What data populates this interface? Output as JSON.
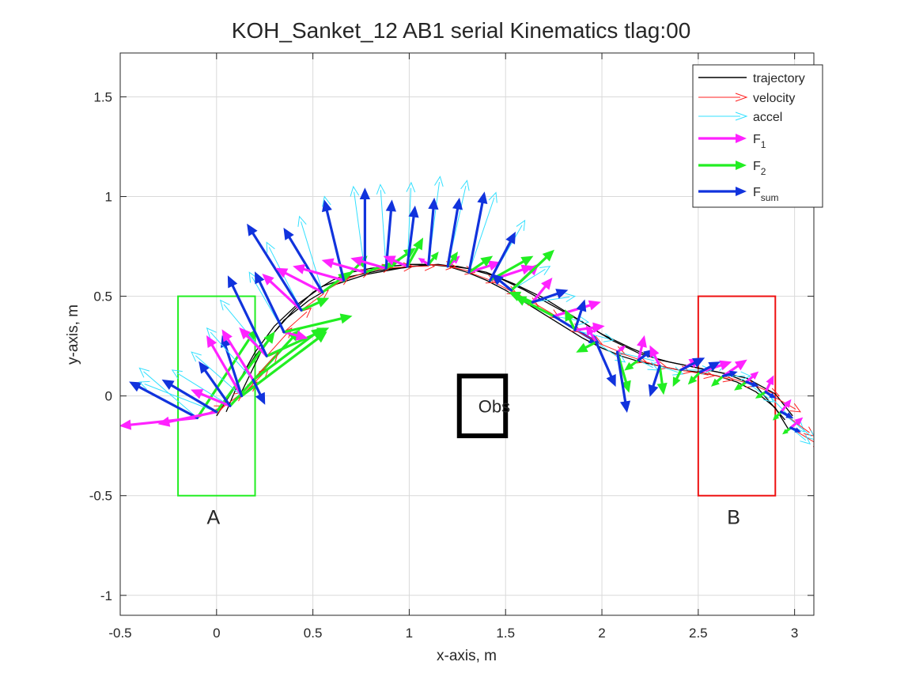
{
  "chart_data": {
    "type": "line",
    "title": "KOH_Sanket_12    AB1    serial    Kinematics tlag:00",
    "xlabel": "x-axis, m",
    "ylabel": "y-axis, m",
    "xlim": [
      -0.5,
      3.1
    ],
    "ylim": [
      -1.1,
      1.72
    ],
    "xticks": [
      -0.5,
      0,
      0.5,
      1,
      1.5,
      2,
      2.5,
      3
    ],
    "yticks": [
      -1,
      -0.5,
      0,
      0.5,
      1,
      1.5
    ],
    "xtick_labels": [
      "-0.5",
      "0",
      "0.5",
      "1",
      "1.5",
      "2",
      "2.5",
      "3"
    ],
    "ytick_labels": [
      "-1",
      "-0.5",
      "0",
      "0.5",
      "1",
      "1.5"
    ],
    "grid": true,
    "legend_position": "top-right",
    "legend": [
      {
        "label": "trajectory",
        "sub": "",
        "color": "#000000",
        "style": "line"
      },
      {
        "label": "velocity",
        "sub": "",
        "color": "#ff2020",
        "style": "thin-arrow"
      },
      {
        "label": "accel",
        "sub": "",
        "color": "#33e0ff",
        "style": "thin-arrow"
      },
      {
        "label": "F",
        "sub": "1",
        "color": "#ff22ff",
        "style": "thick-arrow"
      },
      {
        "label": "F",
        "sub": "2",
        "color": "#22ee22",
        "style": "thick-arrow"
      },
      {
        "label": "F",
        "sub": "sum",
        "color": "#1133dd",
        "style": "thick-arrow"
      }
    ],
    "regions": [
      {
        "label": "A",
        "x": [
          -0.2,
          0.2
        ],
        "y": [
          -0.5,
          0.5
        ],
        "color": "#22ee22"
      },
      {
        "label": "B",
        "x": [
          2.5,
          2.9
        ],
        "y": [
          -0.5,
          0.5
        ],
        "color": "#ee1111"
      }
    ],
    "obstacle": {
      "label": "Obs",
      "x": [
        1.26,
        1.5
      ],
      "y": [
        -0.2,
        0.1
      ],
      "color": "#000000"
    },
    "trajectories": [
      {
        "x": [
          0.0,
          0.1,
          0.2,
          0.3,
          0.4,
          0.5,
          0.6,
          0.7,
          0.8,
          0.9,
          1.0,
          1.1,
          1.2,
          1.3,
          1.4,
          1.5,
          1.6,
          1.7,
          1.8,
          1.9,
          2.0,
          2.1,
          2.2,
          2.3,
          2.4,
          2.5,
          2.6,
          2.7,
          2.8,
          2.9,
          2.97
        ],
        "y": [
          -0.1,
          0.05,
          0.2,
          0.32,
          0.43,
          0.52,
          0.58,
          0.62,
          0.64,
          0.65,
          0.66,
          0.66,
          0.65,
          0.62,
          0.58,
          0.53,
          0.47,
          0.41,
          0.35,
          0.29,
          0.24,
          0.2,
          0.17,
          0.15,
          0.13,
          0.12,
          0.1,
          0.07,
          0.02,
          -0.06,
          -0.17
        ]
      },
      {
        "x": [
          0.05,
          0.12,
          0.2,
          0.3,
          0.42,
          0.55,
          0.7,
          0.85,
          1.0,
          1.15,
          1.3,
          1.45,
          1.6,
          1.75,
          1.9,
          2.05,
          2.2,
          2.35,
          2.5,
          2.65,
          2.8,
          2.95
        ],
        "y": [
          -0.08,
          0.08,
          0.22,
          0.35,
          0.46,
          0.55,
          0.6,
          0.63,
          0.65,
          0.66,
          0.64,
          0.6,
          0.53,
          0.45,
          0.37,
          0.28,
          0.21,
          0.17,
          0.14,
          0.11,
          0.05,
          -0.12
        ]
      },
      {
        "x": [
          0.12,
          0.18,
          0.25,
          0.35,
          0.48,
          0.62,
          0.78,
          0.95,
          1.1,
          1.25,
          1.4,
          1.55,
          1.7,
          1.85,
          2.0,
          2.15,
          2.3,
          2.45,
          2.6,
          2.75,
          2.9,
          2.99
        ],
        "y": [
          0.0,
          0.12,
          0.26,
          0.38,
          0.48,
          0.56,
          0.61,
          0.64,
          0.66,
          0.65,
          0.62,
          0.56,
          0.49,
          0.4,
          0.31,
          0.24,
          0.18,
          0.15,
          0.12,
          0.09,
          0.01,
          -0.1
        ]
      }
    ],
    "samples": [
      {
        "p": [
          -0.1,
          -0.11
        ],
        "v": [
          0.14,
          0.06
        ],
        "a": [
          -0.3,
          0.25
        ],
        "f1": [
          -0.4,
          -0.04
        ],
        "f2": [
          0.3,
          0.44
        ],
        "fs": [
          -0.35,
          0.18
        ]
      },
      {
        "p": [
          0.0,
          -0.08
        ],
        "v": [
          0.14,
          0.1
        ],
        "a": [
          -0.4,
          0.15
        ],
        "f1": [
          -0.3,
          -0.06
        ],
        "f2": [
          0.3,
          0.4
        ],
        "fs": [
          -0.28,
          0.16
        ]
      },
      {
        "p": [
          0.07,
          -0.05
        ],
        "v": [
          0.14,
          0.12
        ],
        "a": [
          -0.3,
          0.18
        ],
        "f1": [
          -0.2,
          0.08
        ],
        "f2": [
          0.36,
          0.38
        ],
        "fs": [
          -0.16,
          0.22
        ]
      },
      {
        "p": [
          0.13,
          0.0
        ],
        "v": [
          0.14,
          0.14
        ],
        "a": [
          -0.26,
          0.22
        ],
        "f1": [
          -0.18,
          0.3
        ],
        "f2": [
          0.44,
          0.32
        ],
        "fs": [
          -0.1,
          0.3
        ]
      },
      {
        "p": [
          0.19,
          0.08
        ],
        "v": [
          0.13,
          0.14
        ],
        "a": [
          -0.24,
          0.26
        ],
        "f1": [
          -0.16,
          0.25
        ],
        "f2": [
          0.36,
          0.26
        ],
        "fs": [
          0.06,
          -0.12
        ]
      },
      {
        "p": [
          0.26,
          0.2
        ],
        "v": [
          0.13,
          0.14
        ],
        "a": [
          -0.24,
          0.28
        ],
        "f1": [
          -0.14,
          0.14
        ],
        "f2": [
          0.32,
          0.14
        ],
        "fs": [
          -0.2,
          0.4
        ]
      },
      {
        "p": [
          0.35,
          0.32
        ],
        "v": [
          0.14,
          0.12
        ],
        "a": [
          -0.18,
          0.3
        ],
        "f1": [
          0.12,
          -0.03
        ],
        "f2": [
          0.35,
          0.08
        ],
        "fs": [
          -0.15,
          0.3
        ]
      },
      {
        "p": [
          0.44,
          0.43
        ],
        "v": [
          0.14,
          0.1
        ],
        "a": [
          -0.18,
          0.34
        ],
        "f1": [
          -0.2,
          0.18
        ],
        "f2": [
          0.14,
          0.06
        ],
        "fs": [
          -0.28,
          0.43
        ]
      },
      {
        "p": [
          0.55,
          0.52
        ],
        "v": [
          0.14,
          0.08
        ],
        "a": [
          -0.12,
          0.38
        ],
        "f1": [
          -0.24,
          0.12
        ],
        "f2": [
          0.14,
          0.1
        ],
        "fs": [
          -0.2,
          0.32
        ]
      },
      {
        "p": [
          0.66,
          0.58
        ],
        "v": [
          0.14,
          0.05
        ],
        "a": [
          -0.1,
          0.42
        ],
        "f1": [
          -0.26,
          0.07
        ],
        "f2": [
          0.12,
          0.12
        ],
        "fs": [
          -0.1,
          0.4
        ]
      },
      {
        "p": [
          0.77,
          0.62
        ],
        "v": [
          0.14,
          0.03
        ],
        "a": [
          -0.06,
          0.43
        ],
        "f1": [
          -0.22,
          0.06
        ],
        "f2": [
          0.18,
          0.06
        ],
        "fs": [
          0.0,
          0.42
        ]
      },
      {
        "p": [
          0.88,
          0.64
        ],
        "v": [
          0.14,
          0.01
        ],
        "a": [
          -0.03,
          0.42
        ],
        "f1": [
          -0.18,
          0.05
        ],
        "f2": [
          0.15,
          0.1
        ],
        "fs": [
          0.03,
          0.34
        ]
      },
      {
        "p": [
          0.99,
          0.65
        ],
        "v": [
          0.14,
          0.0
        ],
        "a": [
          0.02,
          0.42
        ],
        "f1": [
          -0.12,
          0.05
        ],
        "f2": [
          0.08,
          0.14
        ],
        "fs": [
          0.04,
          0.3
        ]
      },
      {
        "p": [
          1.1,
          0.66
        ],
        "v": [
          0.14,
          -0.01
        ],
        "a": [
          0.06,
          0.44
        ],
        "f1": [
          -0.05,
          0.03
        ],
        "f2": [
          0.05,
          0.06
        ],
        "fs": [
          0.03,
          0.33
        ]
      },
      {
        "p": [
          1.2,
          0.65
        ],
        "v": [
          0.14,
          -0.03
        ],
        "a": [
          0.1,
          0.43
        ],
        "f1": [
          0.06,
          0.05
        ],
        "f2": [
          0.05,
          0.07
        ],
        "fs": [
          0.06,
          0.34
        ]
      },
      {
        "p": [
          1.31,
          0.62
        ],
        "v": [
          0.14,
          -0.05
        ],
        "a": [
          0.14,
          0.4
        ],
        "f1": [
          0.16,
          0.05
        ],
        "f2": [
          0.12,
          0.08
        ],
        "fs": [
          0.08,
          0.4
        ]
      },
      {
        "p": [
          1.42,
          0.58
        ],
        "v": [
          0.14,
          -0.07
        ],
        "a": [
          0.18,
          0.3
        ],
        "f1": [
          0.22,
          0.07
        ],
        "f2": [
          0.22,
          0.12
        ],
        "fs": [
          0.13,
          0.24
        ]
      },
      {
        "p": [
          1.53,
          0.53
        ],
        "v": [
          0.14,
          -0.08
        ],
        "a": [
          0.2,
          0.12
        ],
        "f1": [
          0.14,
          0.13
        ],
        "f2": [
          0.22,
          0.2
        ],
        "fs": [
          -0.1,
          0.08
        ]
      },
      {
        "p": [
          1.64,
          0.47
        ],
        "v": [
          0.14,
          -0.08
        ],
        "a": [
          0.22,
          0.03
        ],
        "f1": [
          0.1,
          0.12
        ],
        "f2": [
          -0.12,
          0.05
        ],
        "fs": [
          0.18,
          0.06
        ]
      },
      {
        "p": [
          1.75,
          0.4
        ],
        "v": [
          0.14,
          -0.08
        ],
        "a": [
          0.18,
          -0.03
        ],
        "f1": [
          0.24,
          0.07
        ],
        "f2": [
          -0.2,
          0.1
        ],
        "fs": [
          0.24,
          -0.14
        ]
      },
      {
        "p": [
          1.86,
          0.33
        ],
        "v": [
          0.14,
          -0.07
        ],
        "a": [
          0.2,
          -0.05
        ],
        "f1": [
          0.15,
          0.02
        ],
        "f2": [
          -0.05,
          0.1
        ],
        "fs": [
          0.05,
          0.15
        ]
      },
      {
        "p": [
          1.97,
          0.27
        ],
        "v": [
          0.15,
          -0.06
        ],
        "a": [
          0.15,
          -0.1
        ],
        "f1": [
          -0.05,
          0.08
        ],
        "f2": [
          -0.1,
          -0.05
        ],
        "fs": [
          0.1,
          -0.22
        ]
      },
      {
        "p": [
          2.08,
          0.22
        ],
        "v": [
          0.15,
          -0.05
        ],
        "a": [
          0.22,
          -0.05
        ],
        "f1": [
          0.04,
          0.03
        ],
        "f2": [
          0.06,
          -0.2
        ],
        "fs": [
          0.05,
          -0.3
        ]
      },
      {
        "p": [
          2.19,
          0.18
        ],
        "v": [
          0.15,
          -0.04
        ],
        "a": [
          0.1,
          -0.05
        ],
        "f1": [
          0.03,
          0.12
        ],
        "f2": [
          -0.07,
          -0.05
        ],
        "fs": [
          0.07,
          0.05
        ]
      },
      {
        "p": [
          2.3,
          0.15
        ],
        "v": [
          0.16,
          -0.03
        ],
        "a": [
          0.12,
          -0.04
        ],
        "f1": [
          -0.05,
          0.1
        ],
        "f2": [
          0.02,
          -0.14
        ],
        "fs": [
          -0.05,
          -0.15
        ]
      },
      {
        "p": [
          2.41,
          0.13
        ],
        "v": [
          0.17,
          -0.03
        ],
        "a": [
          0.16,
          0.0
        ],
        "f1": [
          0.1,
          0.06
        ],
        "f2": [
          -0.04,
          -0.08
        ],
        "fs": [
          0.12,
          0.06
        ]
      },
      {
        "p": [
          2.51,
          0.12
        ],
        "v": [
          0.17,
          -0.04
        ],
        "a": [
          0.14,
          0.04
        ],
        "f1": [
          0.16,
          0.05
        ],
        "f2": [
          -0.06,
          -0.06
        ],
        "fs": [
          0.1,
          0.05
        ]
      },
      {
        "p": [
          2.63,
          0.1
        ],
        "v": [
          0.17,
          -0.05
        ],
        "a": [
          0.14,
          0.0
        ],
        "f1": [
          0.12,
          0.08
        ],
        "f2": [
          -0.06,
          -0.05
        ],
        "fs": [
          0.07,
          0.02
        ]
      },
      {
        "p": [
          2.75,
          0.07
        ],
        "v": [
          0.17,
          -0.07
        ],
        "a": [
          0.14,
          -0.1
        ],
        "f1": [
          0.06,
          0.05
        ],
        "f2": [
          -0.06,
          -0.04
        ],
        "fs": [
          0.06,
          -0.02
        ]
      },
      {
        "p": [
          2.85,
          0.02
        ],
        "v": [
          0.18,
          -0.1
        ],
        "a": [
          0.2,
          -0.2
        ],
        "f1": [
          0.04,
          0.08
        ],
        "f2": [
          -0.05,
          -0.03
        ],
        "fs": [
          0.05,
          -0.03
        ]
      },
      {
        "p": [
          2.93,
          -0.08
        ],
        "v": [
          0.17,
          -0.12
        ],
        "a": [
          0.18,
          -0.14
        ],
        "f1": [
          0.05,
          0.06
        ],
        "f2": [
          -0.04,
          -0.04
        ],
        "fs": [
          0.06,
          -0.03
        ]
      },
      {
        "p": [
          2.98,
          -0.16
        ],
        "v": [
          0.17,
          -0.1
        ],
        "a": [
          0.1,
          -0.08
        ],
        "f1": [
          0.06,
          0.05
        ],
        "f2": [
          -0.04,
          -0.03
        ],
        "fs": [
          0.05,
          -0.02
        ]
      }
    ]
  }
}
